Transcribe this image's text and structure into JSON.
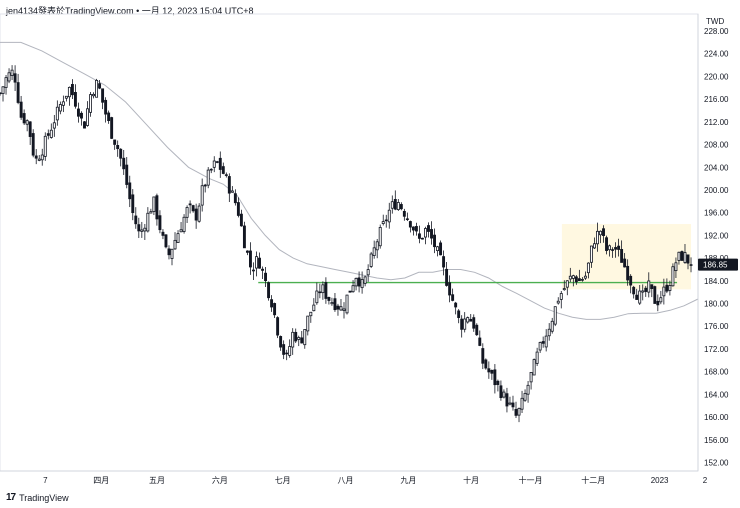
{
  "header": {
    "caption": "jen4134發表於TradingView.com • 一月 12, 2023 15:04 UTC+8"
  },
  "footer": {
    "logo_icon": "tradingview-logo-icon",
    "brand": "TradingView"
  },
  "colors": {
    "up": "#131722",
    "down": "#131722",
    "ma": "#b2b5be",
    "support": "#4caf50",
    "zone": "#fff8e1",
    "price_label_bg": "#131722",
    "grid": "#f0f3fa"
  },
  "chart_data": {
    "type": "candlestick",
    "currency": "TWD",
    "y_ticks": [
      152,
      156,
      160,
      164,
      168,
      172,
      176,
      180,
      184,
      188,
      192,
      196,
      200,
      204,
      208,
      212,
      216,
      220,
      224,
      228
    ],
    "y_tick_labels": [
      "152.00",
      "156.00",
      "160.00",
      "164.00",
      "168.00",
      "172.00",
      "176.00",
      "180.00",
      "184.00",
      "188.00",
      "192.00",
      "196.00",
      "200.00",
      "204.00",
      "208.00",
      "212.00",
      "216.00",
      "220.00",
      "224.00",
      "228.00"
    ],
    "ylim": [
      150.5,
      231
    ],
    "xlim": [
      0,
      100
    ],
    "x_ticks": [
      {
        "label": "7",
        "pos": 6.5
      },
      {
        "label": "四月",
        "pos": 14.5
      },
      {
        "label": "五月",
        "pos": 22.5
      },
      {
        "label": "六月",
        "pos": 31.5
      },
      {
        "label": "七月",
        "pos": 40.5
      },
      {
        "label": "八月",
        "pos": 49.5
      },
      {
        "label": "九月",
        "pos": 58.5
      },
      {
        "label": "十月",
        "pos": 67.5
      },
      {
        "label": "十一月",
        "pos": 76
      },
      {
        "label": "十二月",
        "pos": 85
      },
      {
        "label": "2023",
        "pos": 94.5
      },
      {
        "label": "2",
        "pos": 101
      }
    ],
    "current_price": 186.85,
    "current_price_label": "186.85",
    "support_level": 183.7,
    "support_range": [
      37,
      97
    ],
    "consolidation_zone": {
      "x_start": 80.5,
      "x_end": 99,
      "y_low": 182.5,
      "y_high": 194
    },
    "close_path": [
      [
        0,
        217
      ],
      [
        1,
        220
      ],
      [
        2,
        221
      ],
      [
        3,
        213
      ],
      [
        4,
        212
      ],
      [
        5,
        205
      ],
      [
        6,
        207
      ],
      [
        7,
        210
      ],
      [
        8,
        213
      ],
      [
        9,
        216
      ],
      [
        10,
        218
      ],
      [
        11,
        215
      ],
      [
        12,
        211
      ],
      [
        13,
        217
      ],
      [
        14,
        219
      ],
      [
        15,
        214
      ],
      [
        16,
        210
      ],
      [
        17,
        207
      ],
      [
        18,
        202
      ],
      [
        19,
        196
      ],
      [
        20,
        192
      ],
      [
        21,
        195
      ],
      [
        22,
        198
      ],
      [
        23,
        193
      ],
      [
        24,
        188
      ],
      [
        25,
        191
      ],
      [
        26,
        194
      ],
      [
        27,
        197
      ],
      [
        28,
        195
      ],
      [
        29,
        200
      ],
      [
        30,
        203
      ],
      [
        31,
        205
      ],
      [
        32,
        203
      ],
      [
        33,
        200
      ],
      [
        34,
        197
      ],
      [
        35,
        191
      ],
      [
        36,
        186
      ],
      [
        37,
        188
      ],
      [
        38,
        184
      ],
      [
        39,
        180
      ],
      [
        40,
        174
      ],
      [
        41,
        170
      ],
      [
        42,
        175
      ],
      [
        43,
        173
      ],
      [
        44,
        177
      ],
      [
        45,
        180
      ],
      [
        46,
        183
      ],
      [
        47,
        181
      ],
      [
        48,
        180
      ],
      [
        49,
        179
      ],
      [
        50,
        182
      ],
      [
        51,
        185
      ],
      [
        52,
        183
      ],
      [
        53,
        187
      ],
      [
        54,
        191
      ],
      [
        55,
        194
      ],
      [
        56,
        197
      ],
      [
        57,
        198
      ],
      [
        58,
        196
      ],
      [
        59,
        194
      ],
      [
        60,
        191
      ],
      [
        61,
        193
      ],
      [
        62,
        191
      ],
      [
        63,
        188
      ],
      [
        64,
        184
      ],
      [
        65,
        180
      ],
      [
        66,
        176
      ],
      [
        67,
        178
      ],
      [
        68,
        176
      ],
      [
        69,
        170
      ],
      [
        70,
        168
      ],
      [
        71,
        166
      ],
      [
        72,
        164
      ],
      [
        73,
        162
      ],
      [
        74,
        160
      ],
      [
        75,
        163
      ],
      [
        76,
        167
      ],
      [
        77,
        171
      ],
      [
        78,
        174
      ],
      [
        79,
        177
      ],
      [
        80,
        181
      ],
      [
        81,
        183
      ],
      [
        82,
        185
      ],
      [
        83,
        184
      ],
      [
        84,
        185
      ],
      [
        85,
        191
      ],
      [
        86,
        193
      ],
      [
        87,
        189
      ],
      [
        88,
        190
      ],
      [
        89,
        188
      ],
      [
        90,
        185
      ],
      [
        91,
        182
      ],
      [
        92,
        181
      ],
      [
        93,
        183
      ],
      [
        94,
        180
      ],
      [
        95,
        182
      ],
      [
        96,
        184
      ],
      [
        97,
        188
      ],
      [
        98,
        188.5
      ],
      [
        99,
        186.85
      ]
    ],
    "ma_path": [
      [
        0,
        226
      ],
      [
        3,
        226
      ],
      [
        6,
        224.5
      ],
      [
        9,
        222.5
      ],
      [
        12,
        220.5
      ],
      [
        15,
        218.5
      ],
      [
        18,
        215.5
      ],
      [
        21,
        211.5
      ],
      [
        24,
        207.5
      ],
      [
        27,
        204
      ],
      [
        30,
        202
      ],
      [
        32,
        201
      ],
      [
        34,
        199
      ],
      [
        36,
        195
      ],
      [
        38,
        192
      ],
      [
        40,
        189.5
      ],
      [
        42,
        188
      ],
      [
        44,
        187
      ],
      [
        46,
        186.5
      ],
      [
        48,
        186
      ],
      [
        50,
        185.5
      ],
      [
        52,
        185
      ],
      [
        54,
        184.5
      ],
      [
        56,
        184.2
      ],
      [
        58,
        184.5
      ],
      [
        60,
        185.5
      ],
      [
        62,
        185.5
      ],
      [
        64,
        186
      ],
      [
        66,
        186
      ],
      [
        68,
        185.5
      ],
      [
        70,
        184.5
      ],
      [
        72,
        183
      ],
      [
        74,
        181.8
      ],
      [
        76,
        180.5
      ],
      [
        78,
        179.2
      ],
      [
        80,
        178.3
      ],
      [
        82,
        177.6
      ],
      [
        84,
        177.2
      ],
      [
        86,
        177.2
      ],
      [
        88,
        177.6
      ],
      [
        90,
        178.2
      ],
      [
        92,
        178.3
      ],
      [
        94,
        178.3
      ],
      [
        96,
        178.8
      ],
      [
        98,
        179.6
      ],
      [
        100,
        180.8
      ]
    ]
  }
}
